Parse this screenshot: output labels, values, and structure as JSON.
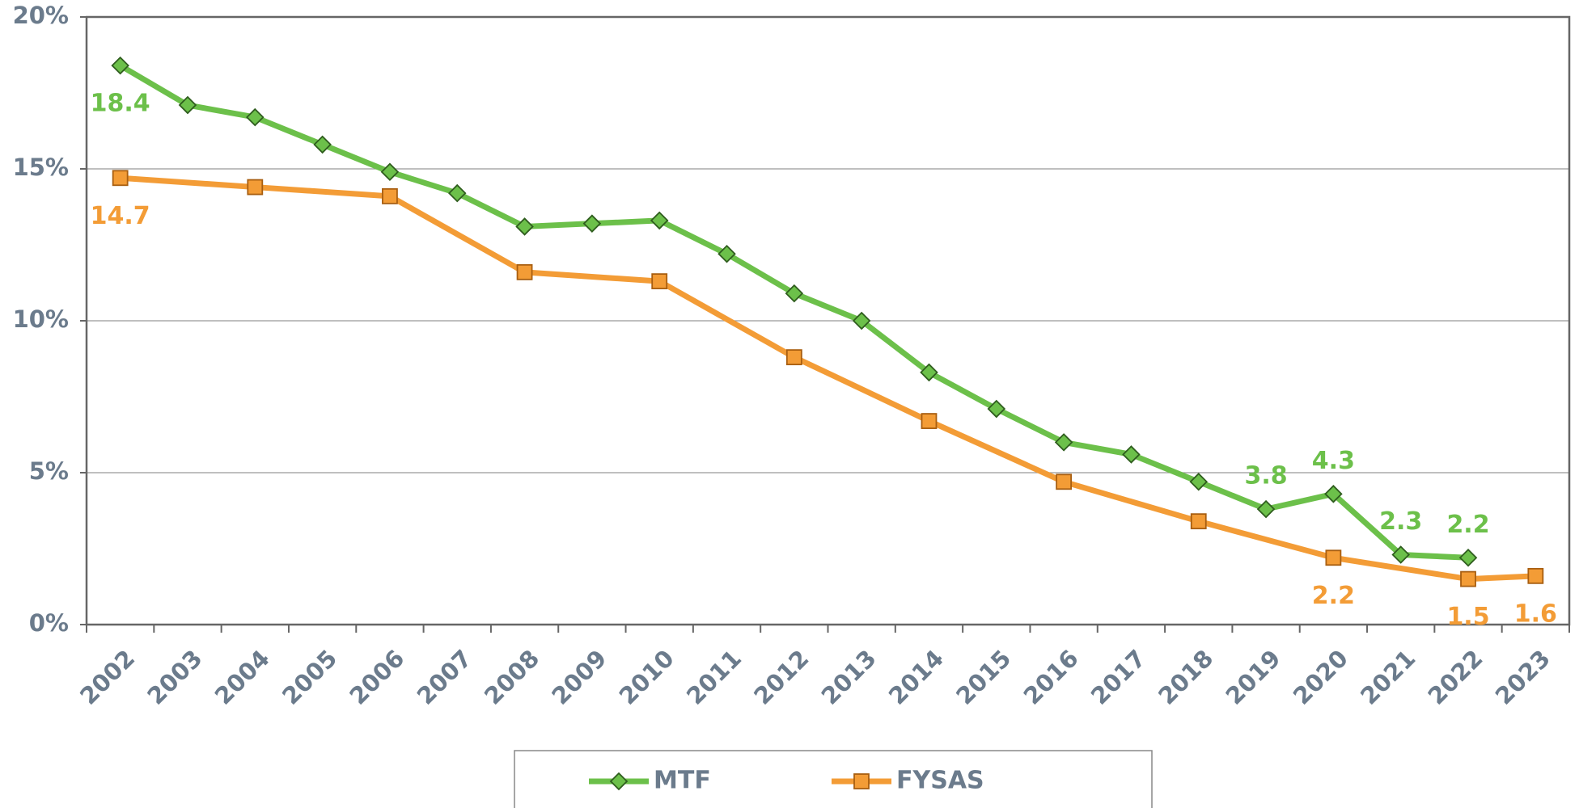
{
  "chart_data": {
    "type": "line",
    "categories": [
      "2002",
      "2003",
      "2004",
      "2005",
      "2006",
      "2007",
      "2008",
      "2009",
      "2010",
      "2011",
      "2012",
      "2013",
      "2014",
      "2015",
      "2016",
      "2017",
      "2018",
      "2019",
      "2020",
      "2021",
      "2022",
      "2023"
    ],
    "ylim": [
      0,
      20
    ],
    "yticks": [
      {
        "value": 0,
        "label": "0%"
      },
      {
        "value": 5,
        "label": "5%"
      },
      {
        "value": 10,
        "label": "10%"
      },
      {
        "value": 15,
        "label": "15%"
      },
      {
        "value": 20,
        "label": "20%"
      }
    ],
    "grid": true,
    "legend": "bottom",
    "series": [
      {
        "name": "MTF",
        "color": "#6cc04a",
        "marker": "diamond",
        "x": [
          "2002",
          "2003",
          "2004",
          "2005",
          "2006",
          "2007",
          "2008",
          "2009",
          "2010",
          "2011",
          "2012",
          "2013",
          "2014",
          "2015",
          "2016",
          "2017",
          "2018",
          "2019",
          "2020",
          "2021",
          "2022"
        ],
        "values": [
          18.4,
          17.1,
          16.7,
          15.8,
          14.9,
          14.2,
          13.1,
          13.2,
          13.3,
          12.2,
          10.9,
          10.0,
          8.3,
          7.1,
          6.0,
          5.6,
          4.7,
          3.8,
          4.3,
          2.3,
          2.2
        ],
        "value_labels": [
          "18.4",
          null,
          null,
          null,
          null,
          null,
          null,
          null,
          null,
          null,
          null,
          null,
          null,
          null,
          null,
          null,
          null,
          "3.8",
          "4.3",
          "2.3",
          "2.2"
        ]
      },
      {
        "name": "FYSAS",
        "color": "#f39c36",
        "marker": "square",
        "x": [
          "2002",
          "2004",
          "2006",
          "2008",
          "2010",
          "2012",
          "2014",
          "2016",
          "2018",
          "2020",
          "2022",
          "2023"
        ],
        "values": [
          14.7,
          14.4,
          14.1,
          11.6,
          11.3,
          8.8,
          6.7,
          4.7,
          3.4,
          2.2,
          1.5,
          1.6
        ],
        "value_labels": [
          "14.7",
          null,
          null,
          null,
          null,
          null,
          null,
          null,
          null,
          "2.2",
          "1.5",
          "1.6"
        ]
      }
    ]
  }
}
